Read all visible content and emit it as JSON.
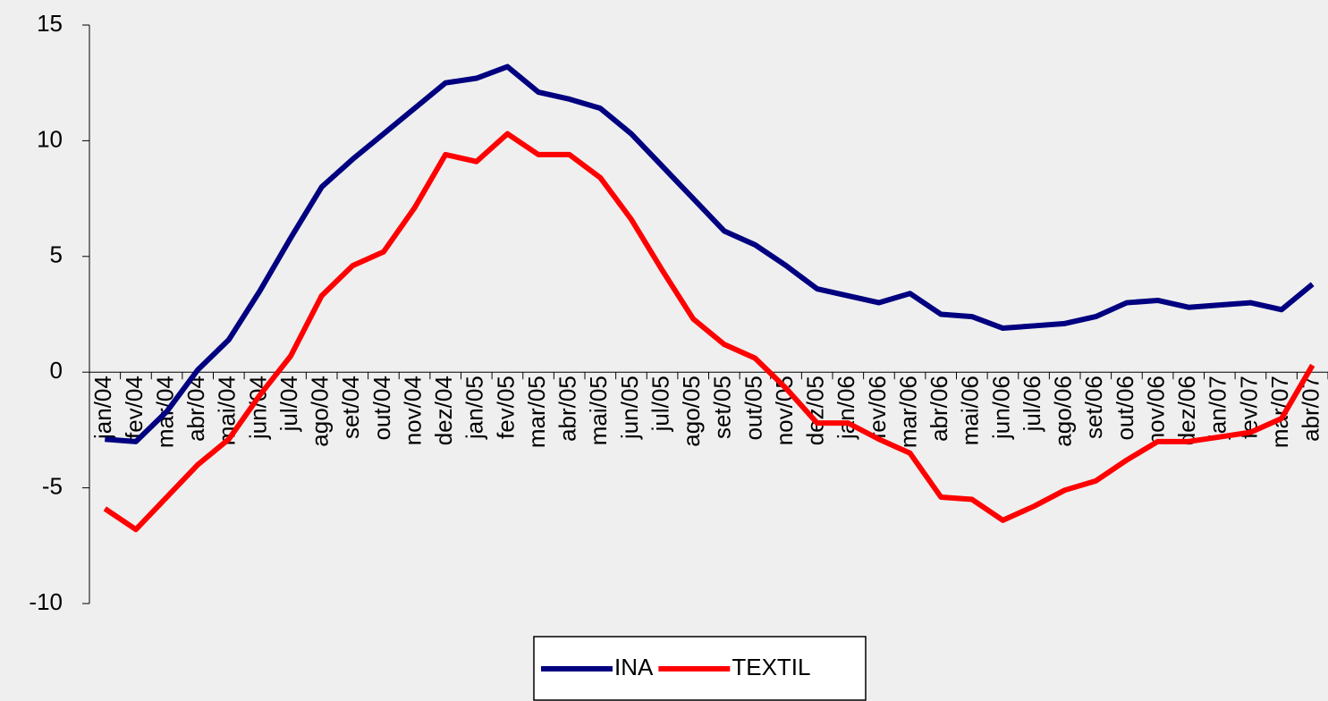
{
  "chart_data": {
    "type": "line",
    "categories": [
      "jan/04",
      "fev/04",
      "mar/04",
      "abr/04",
      "mai/04",
      "jun/04",
      "jul/04",
      "ago/04",
      "set/04",
      "out/04",
      "nov/04",
      "dez/04",
      "jan/05",
      "fev/05",
      "mar/05",
      "abr/05",
      "mai/05",
      "jun/05",
      "jul/05",
      "ago/05",
      "set/05",
      "out/05",
      "nov/05",
      "dez/05",
      "jan/06",
      "fev/06",
      "mar/06",
      "abr/06",
      "mai/06",
      "jun/06",
      "jul/06",
      "ago/06",
      "set/06",
      "out/06",
      "nov/06",
      "dez/06",
      "jan/07",
      "fev/07",
      "mar/07",
      "abr/07"
    ],
    "series": [
      {
        "name": "INA",
        "color": "#000080",
        "values": [
          -2.9,
          -3.0,
          -1.7,
          0.1,
          1.4,
          3.5,
          5.8,
          8.0,
          9.2,
          10.3,
          11.4,
          12.5,
          12.7,
          13.2,
          12.1,
          11.8,
          11.4,
          10.3,
          8.9,
          7.5,
          6.1,
          5.5,
          4.6,
          3.6,
          3.3,
          3.0,
          3.4,
          2.5,
          2.4,
          1.9,
          2.0,
          2.1,
          2.4,
          3.0,
          3.1,
          2.8,
          2.9,
          3.0,
          2.7,
          3.8
        ]
      },
      {
        "name": "TEXTIL",
        "color": "#ff0000",
        "values": [
          -5.9,
          -6.8,
          -5.4,
          -4.0,
          -2.9,
          -1.0,
          0.7,
          3.3,
          4.6,
          5.2,
          7.1,
          9.4,
          9.1,
          10.3,
          9.4,
          9.4,
          8.4,
          6.6,
          4.4,
          2.3,
          1.2,
          0.6,
          -0.7,
          -2.2,
          -2.2,
          -2.9,
          -3.5,
          -5.4,
          -5.5,
          -6.4,
          -5.8,
          -5.1,
          -4.7,
          -3.8,
          -3.0,
          -3.0,
          -2.8,
          -2.6,
          -2.0,
          0.3
        ]
      }
    ],
    "ylim": [
      -10,
      15
    ],
    "yticks": [
      -10,
      -5,
      0,
      5,
      10,
      15
    ],
    "legend": "bottom"
  }
}
